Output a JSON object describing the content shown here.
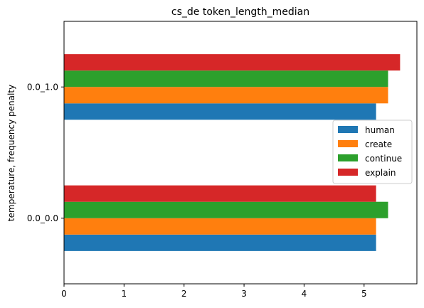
{
  "chart_data": {
    "type": "bar",
    "orientation": "horizontal",
    "title": "cs_de token_length_median",
    "xlabel": "",
    "ylabel": "temperature, frequency penalty",
    "categories": [
      "0.0_0.0",
      "0.0_1.0"
    ],
    "series": [
      {
        "name": "human",
        "color": "#1f77b4",
        "values": [
          5.2,
          5.2
        ]
      },
      {
        "name": "create",
        "color": "#ff7f0e",
        "values": [
          5.2,
          5.4
        ]
      },
      {
        "name": "continue",
        "color": "#2ca02c",
        "values": [
          5.4,
          5.4
        ]
      },
      {
        "name": "explain",
        "color": "#d62728",
        "values": [
          5.2,
          5.6
        ]
      }
    ],
    "xlim": [
      0,
      5.88
    ],
    "xticks": [
      0,
      1,
      2,
      3,
      4,
      5
    ],
    "grid": false,
    "legend_position": "center-right"
  }
}
